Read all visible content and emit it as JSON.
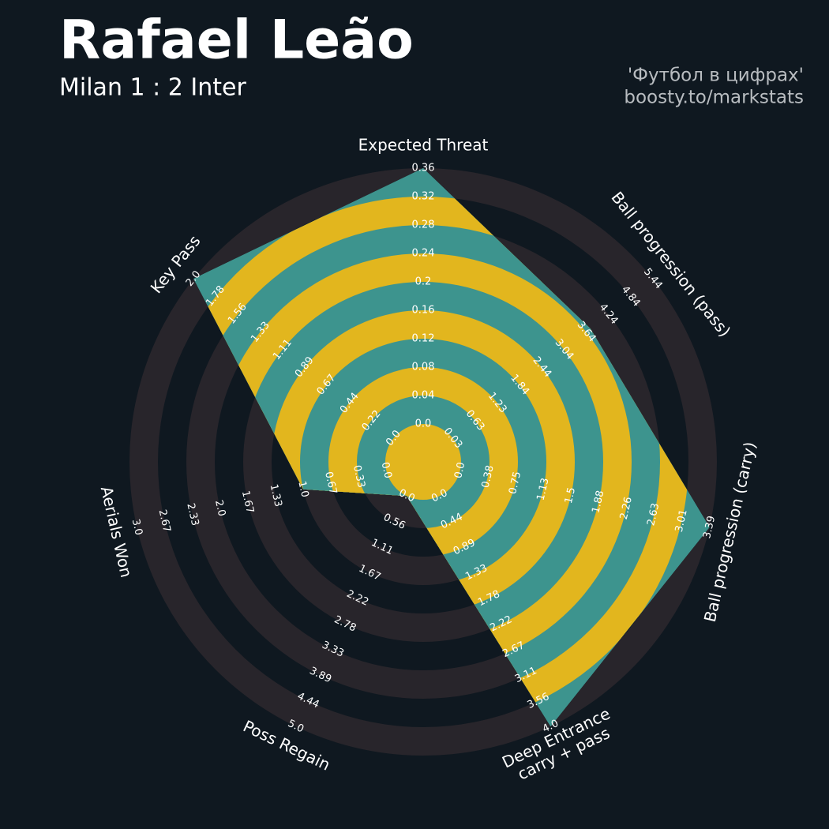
{
  "chart_data": {
    "type": "radar",
    "title": "Rafael Leão",
    "subtitle": "Milan 1 : 2 Inter",
    "credits": [
      "'Футбол в цифрах'",
      "boosty.to/markstats"
    ],
    "categories": [
      "Expected Threat",
      "Ball progression (pass)",
      "Ball progression (carry)",
      "Deep Entrance\ncarry + pass",
      "Poss Regain",
      "Aerials Won",
      "Key Pass"
    ],
    "values": [
      0.36,
      3.75,
      3.39,
      4.0,
      0,
      1.0,
      2.0
    ],
    "color": "#3d948e",
    "ring_color": "#e2b61e",
    "background_ring_color": "#28252b",
    "axes": [
      {
        "lim": [
          0,
          0.36
        ],
        "ticks": [
          {
            "value": 0,
            "label": "0.0"
          },
          0.04,
          0.08,
          0.12,
          0.16,
          0.2,
          0.24,
          0.28,
          0.32,
          0.36
        ]
      },
      {
        "lim": [
          0.03,
          5.44
        ],
        "ticks": [
          0.03,
          0.63,
          1.23,
          1.84,
          2.44,
          3.04,
          3.64,
          4.24,
          4.84,
          5.44
        ]
      },
      {
        "lim": [
          0,
          3.39
        ],
        "ticks": [
          {
            "value": 0,
            "label": "0.0"
          },
          0.38,
          0.75,
          1.13,
          1.5,
          1.88,
          2.26,
          2.63,
          3.01,
          3.39
        ]
      },
      {
        "lim": [
          0,
          4
        ],
        "ticks": [
          {
            "value": 0,
            "label": "0.0"
          },
          0.44,
          0.89,
          1.33,
          1.78,
          2.22,
          2.67,
          3.11,
          3.56,
          {
            "value": 4,
            "label": "4.0"
          }
        ]
      },
      {
        "lim": [
          0,
          5
        ],
        "ticks": [
          {
            "value": 0,
            "label": "0.0"
          },
          0.56,
          1.11,
          1.67,
          2.22,
          2.78,
          3.33,
          3.89,
          4.44,
          {
            "value": 5,
            "label": "5.0"
          }
        ]
      },
      {
        "lim": [
          0,
          3
        ],
        "ticks": [
          {
            "value": 0,
            "label": "0.0"
          },
          0.33,
          0.67,
          {
            "value": 1,
            "label": "1.0"
          },
          1.33,
          1.67,
          {
            "value": 2,
            "label": "2.0"
          },
          2.33,
          2.67,
          {
            "value": 3,
            "label": "3.0"
          }
        ]
      },
      {
        "lim": [
          0,
          2
        ],
        "ticks": [
          {
            "value": 0,
            "label": "0.0"
          },
          0.22,
          0.44,
          0.67,
          0.89,
          1.11,
          1.33,
          1.56,
          1.78,
          {
            "value": 2,
            "label": "2.0"
          }
        ]
      }
    ]
  }
}
